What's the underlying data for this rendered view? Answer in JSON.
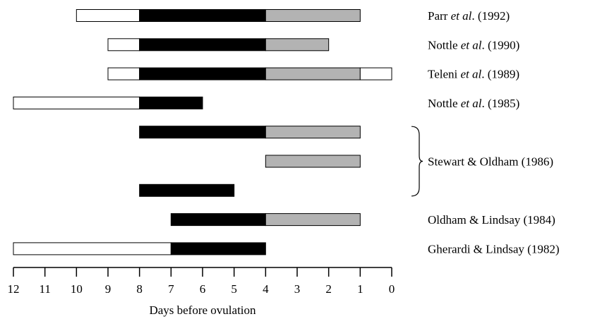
{
  "chart_data": {
    "type": "bar",
    "orientation": "horizontal",
    "segment_fills": {
      "open": "#ffffff",
      "filled": "#000000",
      "shaded": "#b3b3b3"
    },
    "x_axis": {
      "label": "Days before ovulation",
      "min": 0,
      "max": 12,
      "reversed": true,
      "ticks": [
        12,
        11,
        10,
        9,
        8,
        7,
        6,
        5,
        4,
        3,
        2,
        1,
        0
      ]
    },
    "rows": [
      {
        "label_parts": [
          [
            "Parr ",
            "n"
          ],
          [
            "et al",
            "i"
          ],
          [
            ". (1992)",
            "n"
          ]
        ],
        "segments": [
          {
            "from": 10,
            "to": 8,
            "fill": "open"
          },
          {
            "from": 8,
            "to": 4,
            "fill": "filled"
          },
          {
            "from": 4,
            "to": 1,
            "fill": "shaded"
          }
        ]
      },
      {
        "label_parts": [
          [
            "Nottle ",
            "n"
          ],
          [
            "et al",
            "i"
          ],
          [
            ". (1990)",
            "n"
          ]
        ],
        "segments": [
          {
            "from": 9,
            "to": 8,
            "fill": "open"
          },
          {
            "from": 8,
            "to": 4,
            "fill": "filled"
          },
          {
            "from": 4,
            "to": 2,
            "fill": "shaded"
          }
        ]
      },
      {
        "label_parts": [
          [
            "Teleni ",
            "n"
          ],
          [
            "et al",
            "i"
          ],
          [
            ". (1989)",
            "n"
          ]
        ],
        "segments": [
          {
            "from": 9,
            "to": 8,
            "fill": "open"
          },
          {
            "from": 8,
            "to": 4,
            "fill": "filled"
          },
          {
            "from": 4,
            "to": 1,
            "fill": "shaded"
          },
          {
            "from": 1,
            "to": 0,
            "fill": "open"
          }
        ]
      },
      {
        "label_parts": [
          [
            "Nottle ",
            "n"
          ],
          [
            "et al",
            "i"
          ],
          [
            ". (1985)",
            "n"
          ]
        ],
        "segments": [
          {
            "from": 12,
            "to": 8,
            "fill": "open"
          },
          {
            "from": 8,
            "to": 6,
            "fill": "filled"
          }
        ]
      },
      {
        "label_parts": [],
        "segments": [
          {
            "from": 8,
            "to": 4,
            "fill": "filled"
          },
          {
            "from": 4,
            "to": 1,
            "fill": "shaded"
          }
        ]
      },
      {
        "label_parts": [],
        "segments": [
          {
            "from": 4,
            "to": 1,
            "fill": "shaded"
          }
        ]
      },
      {
        "label_parts": [],
        "segments": [
          {
            "from": 8,
            "to": 5,
            "fill": "filled"
          }
        ]
      },
      {
        "label_parts": [
          [
            "Oldham & Lindsay (1984)",
            "n"
          ]
        ],
        "segments": [
          {
            "from": 7,
            "to": 4,
            "fill": "filled"
          },
          {
            "from": 4,
            "to": 1,
            "fill": "shaded"
          }
        ]
      },
      {
        "label_parts": [
          [
            "Gherardi & Lindsay (1982)",
            "n"
          ]
        ],
        "segments": [
          {
            "from": 12,
            "to": 7,
            "fill": "open"
          },
          {
            "from": 7,
            "to": 4,
            "fill": "filled"
          }
        ]
      }
    ],
    "group_brackets": [
      {
        "label": "Stewart & Oldham (1986)",
        "rows": [
          4,
          5,
          6
        ]
      }
    ]
  }
}
